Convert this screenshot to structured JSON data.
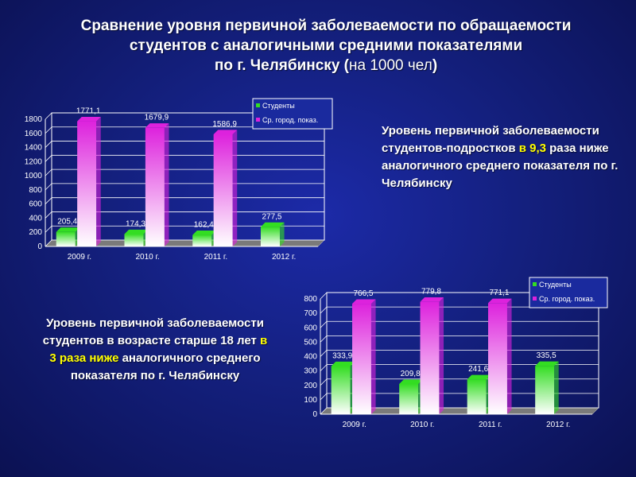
{
  "title": {
    "line1": "Сравнение уровня первичной заболеваемости по обращаемости",
    "line2": "студентов  с аналогичными средними показателями",
    "line3_bold": "по г. Челябинску  (",
    "line3_normal": "на 1000 чел",
    "line3_end": ")"
  },
  "note1": {
    "part1": "Уровень первичной заболеваемости студентов-подростков ",
    "highlight": "в 9,3",
    "part2": " раза ниже аналогичного среднего показателя по г. Челябинску"
  },
  "note2": {
    "part1": "Уровень первичной заболеваемости студентов в возрасте старше 18 лет ",
    "highlight1": "в 3 раза ниже",
    "part2": " аналогичного среднего показателя по г. Челябинску"
  },
  "colors": {
    "students": "#33dd22",
    "city": "#dd22dd"
  },
  "chart_data": [
    {
      "type": "bar",
      "categories": [
        "2009 г.",
        "2010 г.",
        "2011 г.",
        "2012 г."
      ],
      "series": [
        {
          "name": "Студенты",
          "values": [
            205.4,
            174.3,
            162.4,
            277.5
          ],
          "labels": [
            "205,4",
            "174,3",
            "162,4",
            "277,5"
          ]
        },
        {
          "name": "Ср. город. показ.",
          "values": [
            1771.1,
            1679.9,
            1586.9,
            null
          ],
          "labels": [
            "1771,1",
            "1679,9",
            "1586,9",
            ""
          ]
        }
      ],
      "ylim": [
        0,
        1800
      ],
      "yticks": [
        0,
        200,
        400,
        600,
        800,
        1000,
        1200,
        1400,
        1600,
        1800
      ],
      "grid": true,
      "legend_position": "top-right"
    },
    {
      "type": "bar",
      "categories": [
        "2009 г.",
        "2010 г.",
        "2011 г.",
        "2012 г."
      ],
      "series": [
        {
          "name": "Студенты",
          "values": [
            333.9,
            209.8,
            241.6,
            335.5
          ],
          "labels": [
            "333,9",
            "209,8",
            "241,6",
            "335,5"
          ]
        },
        {
          "name": "Ср. город. показ.",
          "values": [
            766.5,
            779.8,
            771.1,
            null
          ],
          "labels": [
            "766,5",
            "779,8",
            "771,1",
            ""
          ]
        }
      ],
      "ylim": [
        0,
        800
      ],
      "yticks": [
        0,
        100,
        200,
        300,
        400,
        500,
        600,
        700,
        800
      ],
      "grid": true,
      "legend_position": "top-right"
    }
  ]
}
